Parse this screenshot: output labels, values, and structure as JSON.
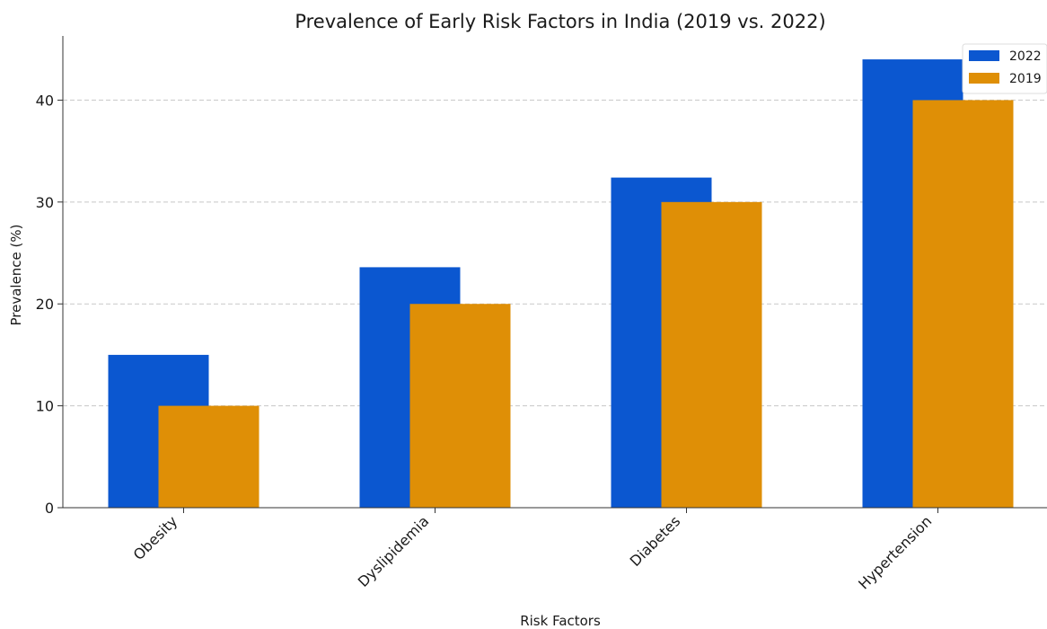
{
  "chart_data": {
    "type": "bar",
    "title": "Prevalence of Early Risk Factors in India (2019 vs. 2022)",
    "xlabel": "Risk Factors",
    "ylabel": "Prevalence (%)",
    "categories": [
      "Obesity",
      "Dyslipidemia",
      "Diabetes",
      "Hypertension"
    ],
    "series": [
      {
        "name": "2022",
        "values": [
          15.0,
          23.6,
          32.4,
          44.0
        ],
        "color": "#0b57d0"
      },
      {
        "name": "2019",
        "values": [
          10.0,
          20.0,
          30.0,
          40.0
        ],
        "color": "#df8f06"
      }
    ],
    "ylim": [
      0,
      46.3
    ],
    "yticks": [
      0,
      10,
      20,
      30,
      40
    ],
    "grid": "horizontal dashed",
    "legend_position": "top-right"
  }
}
